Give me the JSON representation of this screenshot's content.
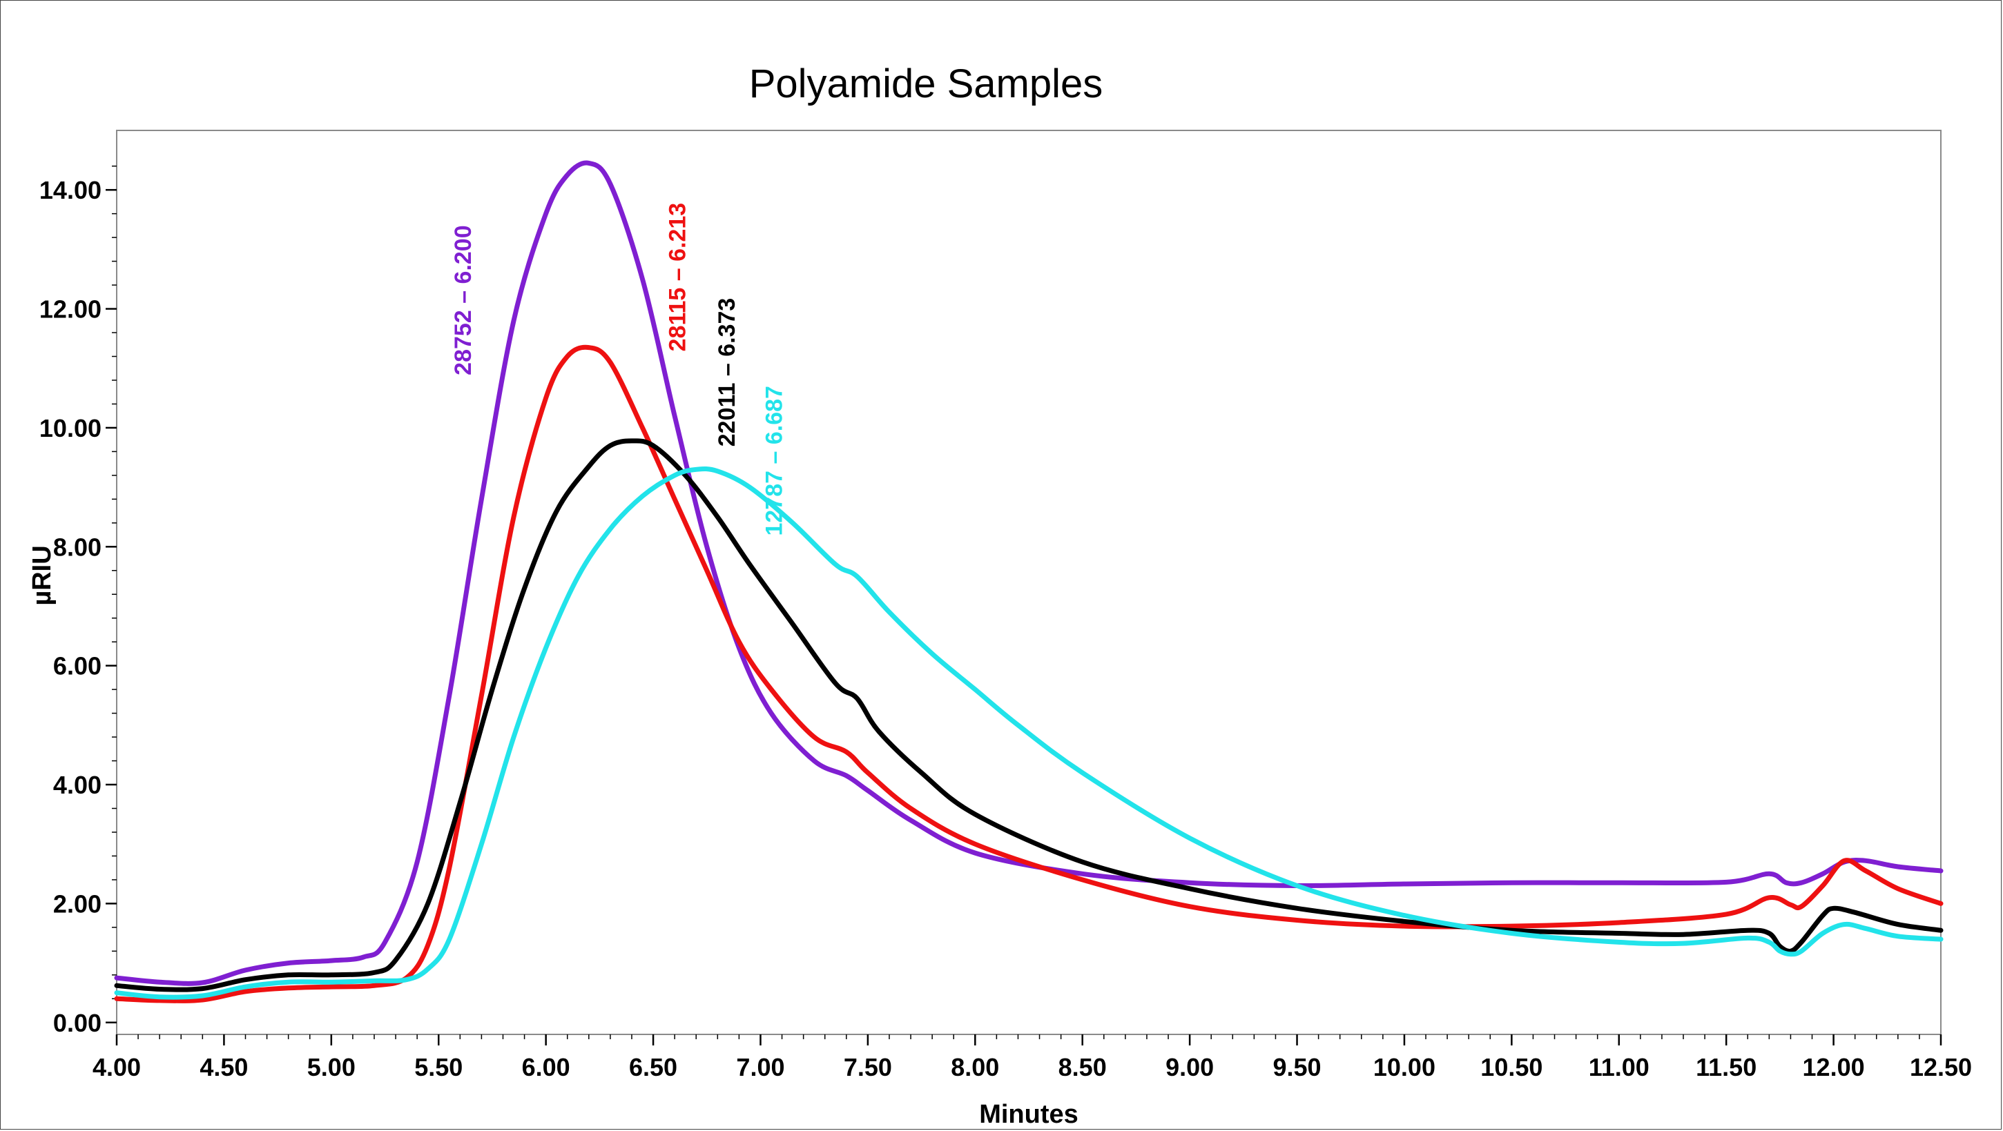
{
  "chart_data": {
    "type": "line",
    "title": "Polyamide Samples",
    "xlabel": "Minutes",
    "ylabel": "µRIU",
    "xlim": [
      4.0,
      12.5
    ],
    "ylim": [
      -0.2,
      15.0
    ],
    "x_ticks": [
      "4.00",
      "4.50",
      "5.00",
      "5.50",
      "6.00",
      "6.50",
      "7.00",
      "7.50",
      "8.00",
      "8.50",
      "9.00",
      "9.50",
      "10.00",
      "10.50",
      "11.00",
      "11.50",
      "12.00",
      "12.50"
    ],
    "x_tick_values": [
      4.0,
      4.5,
      5.0,
      5.5,
      6.0,
      6.5,
      7.0,
      7.5,
      8.0,
      8.5,
      9.0,
      9.5,
      10.0,
      10.5,
      11.0,
      11.5,
      12.0,
      12.5
    ],
    "y_ticks": [
      "0.00",
      "2.00",
      "4.00",
      "6.00",
      "8.00",
      "10.00",
      "12.00",
      "14.00"
    ],
    "y_tick_values": [
      0,
      2,
      4,
      6,
      8,
      10,
      12,
      14
    ],
    "grid": false,
    "series": [
      {
        "color": "#7f1fd1",
        "label": "28752 – 6.200",
        "label_at": [
          5.65,
          13.9
        ],
        "points": [
          [
            4.0,
            0.75
          ],
          [
            4.2,
            0.68
          ],
          [
            4.4,
            0.67
          ],
          [
            4.6,
            0.88
          ],
          [
            4.8,
            1.0
          ],
          [
            5.0,
            1.04
          ],
          [
            5.15,
            1.1
          ],
          [
            5.25,
            1.35
          ],
          [
            5.4,
            2.7
          ],
          [
            5.55,
            5.5
          ],
          [
            5.7,
            8.8
          ],
          [
            5.85,
            11.8
          ],
          [
            6.0,
            13.6
          ],
          [
            6.1,
            14.25
          ],
          [
            6.2,
            14.45
          ],
          [
            6.3,
            14.1
          ],
          [
            6.45,
            12.5
          ],
          [
            6.6,
            10.2
          ],
          [
            6.75,
            8.0
          ],
          [
            6.9,
            6.3
          ],
          [
            7.05,
            5.2
          ],
          [
            7.25,
            4.4
          ],
          [
            7.4,
            4.15
          ],
          [
            7.5,
            3.9
          ],
          [
            7.7,
            3.4
          ],
          [
            8.0,
            2.85
          ],
          [
            8.5,
            2.5
          ],
          [
            9.0,
            2.35
          ],
          [
            9.5,
            2.3
          ],
          [
            10.0,
            2.33
          ],
          [
            10.5,
            2.35
          ],
          [
            11.0,
            2.35
          ],
          [
            11.5,
            2.36
          ],
          [
            11.7,
            2.5
          ],
          [
            11.78,
            2.35
          ],
          [
            11.85,
            2.35
          ],
          [
            11.95,
            2.5
          ],
          [
            12.05,
            2.7
          ],
          [
            12.15,
            2.72
          ],
          [
            12.3,
            2.62
          ],
          [
            12.5,
            2.55
          ]
        ]
      },
      {
        "color": "#ee1111",
        "label": "28115 – 6.213",
        "label_at": [
          6.65,
          14.3
        ],
        "points": [
          [
            4.0,
            0.4
          ],
          [
            4.2,
            0.37
          ],
          [
            4.4,
            0.38
          ],
          [
            4.6,
            0.52
          ],
          [
            4.8,
            0.58
          ],
          [
            5.0,
            0.6
          ],
          [
            5.2,
            0.62
          ],
          [
            5.35,
            0.75
          ],
          [
            5.45,
            1.3
          ],
          [
            5.55,
            2.6
          ],
          [
            5.7,
            5.5
          ],
          [
            5.85,
            8.5
          ],
          [
            6.0,
            10.5
          ],
          [
            6.1,
            11.2
          ],
          [
            6.2,
            11.35
          ],
          [
            6.3,
            11.1
          ],
          [
            6.45,
            10.0
          ],
          [
            6.6,
            8.8
          ],
          [
            6.75,
            7.6
          ],
          [
            6.9,
            6.4
          ],
          [
            7.05,
            5.6
          ],
          [
            7.25,
            4.8
          ],
          [
            7.4,
            4.55
          ],
          [
            7.5,
            4.2
          ],
          [
            7.7,
            3.6
          ],
          [
            8.0,
            3.0
          ],
          [
            8.5,
            2.4
          ],
          [
            9.0,
            1.95
          ],
          [
            9.5,
            1.72
          ],
          [
            10.0,
            1.62
          ],
          [
            10.5,
            1.62
          ],
          [
            11.0,
            1.68
          ],
          [
            11.5,
            1.82
          ],
          [
            11.7,
            2.1
          ],
          [
            11.8,
            1.98
          ],
          [
            11.85,
            1.95
          ],
          [
            11.95,
            2.3
          ],
          [
            12.05,
            2.72
          ],
          [
            12.15,
            2.55
          ],
          [
            12.3,
            2.25
          ],
          [
            12.5,
            2.0
          ]
        ]
      },
      {
        "color": "#000000",
        "label": "22011 – 6.373",
        "label_at": [
          6.88,
          12.7
        ],
        "points": [
          [
            4.0,
            0.62
          ],
          [
            4.2,
            0.56
          ],
          [
            4.4,
            0.57
          ],
          [
            4.6,
            0.72
          ],
          [
            4.8,
            0.8
          ],
          [
            5.0,
            0.8
          ],
          [
            5.2,
            0.84
          ],
          [
            5.3,
            1.05
          ],
          [
            5.45,
            2.0
          ],
          [
            5.6,
            3.7
          ],
          [
            5.75,
            5.6
          ],
          [
            5.9,
            7.3
          ],
          [
            6.05,
            8.6
          ],
          [
            6.2,
            9.35
          ],
          [
            6.3,
            9.7
          ],
          [
            6.4,
            9.78
          ],
          [
            6.5,
            9.7
          ],
          [
            6.65,
            9.2
          ],
          [
            6.8,
            8.5
          ],
          [
            6.95,
            7.7
          ],
          [
            7.15,
            6.7
          ],
          [
            7.35,
            5.7
          ],
          [
            7.45,
            5.45
          ],
          [
            7.55,
            4.9
          ],
          [
            7.75,
            4.2
          ],
          [
            8.0,
            3.5
          ],
          [
            8.5,
            2.7
          ],
          [
            9.0,
            2.25
          ],
          [
            9.5,
            1.92
          ],
          [
            10.0,
            1.7
          ],
          [
            10.5,
            1.55
          ],
          [
            11.0,
            1.5
          ],
          [
            11.3,
            1.48
          ],
          [
            11.6,
            1.55
          ],
          [
            11.7,
            1.5
          ],
          [
            11.75,
            1.28
          ],
          [
            11.8,
            1.2
          ],
          [
            11.85,
            1.35
          ],
          [
            11.95,
            1.8
          ],
          [
            12.0,
            1.92
          ],
          [
            12.1,
            1.85
          ],
          [
            12.3,
            1.65
          ],
          [
            12.5,
            1.55
          ]
        ]
      },
      {
        "color": "#22e3ea",
        "label": "12787 – 6.687",
        "label_at": [
          7.1,
          11.2
        ],
        "points": [
          [
            4.0,
            0.5
          ],
          [
            4.2,
            0.43
          ],
          [
            4.4,
            0.45
          ],
          [
            4.6,
            0.6
          ],
          [
            4.8,
            0.68
          ],
          [
            5.0,
            0.68
          ],
          [
            5.2,
            0.7
          ],
          [
            5.35,
            0.72
          ],
          [
            5.45,
            0.9
          ],
          [
            5.55,
            1.4
          ],
          [
            5.7,
            3.0
          ],
          [
            5.85,
            4.8
          ],
          [
            6.0,
            6.3
          ],
          [
            6.15,
            7.5
          ],
          [
            6.3,
            8.3
          ],
          [
            6.45,
            8.85
          ],
          [
            6.6,
            9.2
          ],
          [
            6.7,
            9.3
          ],
          [
            6.8,
            9.27
          ],
          [
            6.95,
            9.0
          ],
          [
            7.15,
            8.4
          ],
          [
            7.35,
            7.7
          ],
          [
            7.45,
            7.5
          ],
          [
            7.6,
            6.9
          ],
          [
            7.8,
            6.2
          ],
          [
            8.0,
            5.6
          ],
          [
            8.2,
            5.0
          ],
          [
            8.5,
            4.2
          ],
          [
            9.0,
            3.1
          ],
          [
            9.5,
            2.3
          ],
          [
            10.0,
            1.8
          ],
          [
            10.5,
            1.5
          ],
          [
            11.0,
            1.35
          ],
          [
            11.3,
            1.33
          ],
          [
            11.6,
            1.42
          ],
          [
            11.7,
            1.35
          ],
          [
            11.75,
            1.2
          ],
          [
            11.8,
            1.15
          ],
          [
            11.85,
            1.2
          ],
          [
            11.95,
            1.5
          ],
          [
            12.05,
            1.65
          ],
          [
            12.15,
            1.58
          ],
          [
            12.3,
            1.45
          ],
          [
            12.5,
            1.4
          ]
        ]
      }
    ]
  }
}
